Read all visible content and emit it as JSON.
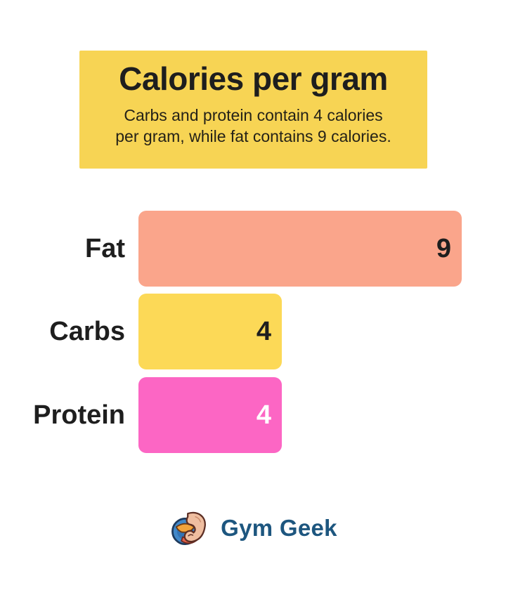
{
  "header": {
    "title": "Calories per gram",
    "subtitle_lines": [
      "Carbs and protein contain 4 calories",
      "per gram, while fat contains 9 calories."
    ],
    "bg_color": "#F7D454"
  },
  "footer": {
    "brand": "Gym Geek",
    "brand_color": "#1D567F"
  },
  "colors": {
    "background": "#FFFFFF",
    "text_dark": "#1E1E1E"
  },
  "chart_data": {
    "type": "bar",
    "orientation": "horizontal",
    "title": "Calories per gram",
    "subtitle": "Carbs and protein contain 4 calories per gram, while fat contains 9 calories.",
    "categories": [
      "Fat",
      "Carbs",
      "Protein"
    ],
    "values": [
      9,
      4,
      4
    ],
    "xlabel": "",
    "ylabel": "",
    "xlim": [
      0,
      9
    ],
    "grid": false,
    "legend": false,
    "value_labels": "inside-end",
    "bars": [
      {
        "label": "Fat",
        "value": 9,
        "color": "#FAA58B",
        "value_color": "#1E1E1E"
      },
      {
        "label": "Carbs",
        "value": 4,
        "color": "#FCD957",
        "value_color": "#1E1E1E"
      },
      {
        "label": "Protein",
        "value": 4,
        "color": "#FC66C4",
        "value_color": "#FFFFFF"
      }
    ]
  }
}
